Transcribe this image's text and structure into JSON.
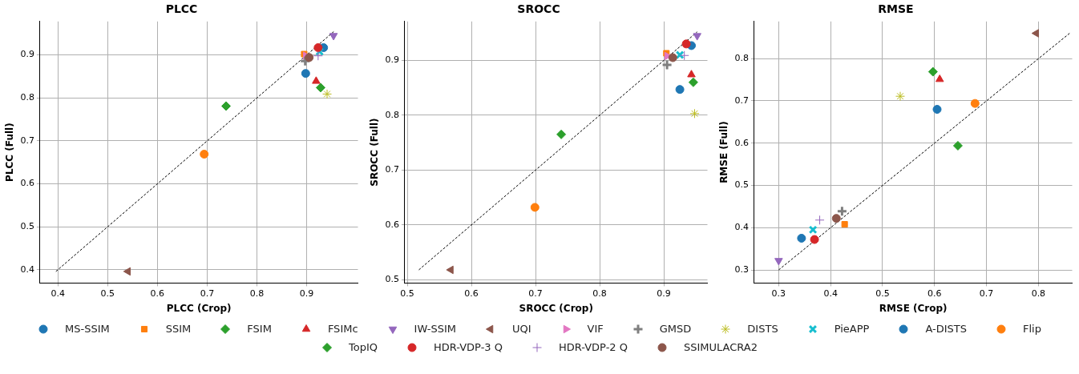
{
  "chart_data": [
    {
      "type": "scatter",
      "title": "PLCC",
      "xlabel": "PLCC (Crop)",
      "ylabel": "PLCC (Full)",
      "xlim": [
        0.364,
        1.003
      ],
      "ylim": [
        0.369,
        0.978
      ],
      "xticks": [
        0.4,
        0.5,
        0.6,
        0.7,
        0.8,
        0.9
      ],
      "yticks": [
        0.4,
        0.5,
        0.6,
        0.7,
        0.8,
        0.9
      ],
      "grid": true,
      "legend": "bottom",
      "series": [
        {
          "name": "MS-SSIM",
          "color": "#1f77b4",
          "marker": "circle",
          "x": [
            0.934
          ],
          "values": [
            0.917
          ]
        },
        {
          "name": "SSIM",
          "color": "#ff7f0e",
          "marker": "square",
          "x": [
            0.895
          ],
          "values": [
            0.902
          ]
        },
        {
          "name": "FSIM",
          "color": "#2ca02c",
          "marker": "diamond",
          "x": [
            0.928
          ],
          "values": [
            0.824
          ]
        },
        {
          "name": "FSIMc",
          "color": "#d62728",
          "marker": "triangle",
          "x": [
            0.919
          ],
          "values": [
            0.839
          ]
        },
        {
          "name": "IW-SSIM",
          "color": "#9467bd",
          "marker": "triangle_down",
          "x": [
            0.954
          ],
          "values": [
            0.945
          ]
        },
        {
          "name": "UQI",
          "color": "#8c564b",
          "marker": "triangle_left",
          "x": [
            0.541
          ],
          "values": [
            0.396
          ]
        },
        {
          "name": "VIF",
          "color": "#e377c2",
          "marker": "triangle_right",
          "x": [
            0.898
          ],
          "values": [
            0.898
          ]
        },
        {
          "name": "GMSD",
          "color": "#7f7f7f",
          "marker": "plus",
          "x": [
            0.897
          ],
          "values": [
            0.886
          ]
        },
        {
          "name": "DISTS",
          "color": "#bcbd22",
          "x": [
            0.941
          ],
          "values": [
            0.809
          ]
        },
        {
          "name": "PieAPP",
          "color": "#17becf",
          "marker": "x",
          "x": [
            0.926
          ],
          "values": [
            0.908
          ]
        },
        {
          "name": "A-DISTS",
          "color": "#1f77b4",
          "marker": "circle",
          "x": [
            0.898
          ],
          "values": [
            0.857
          ]
        },
        {
          "name": "Flip",
          "color": "#ff7f0e",
          "marker": "circle",
          "x": [
            0.694
          ],
          "values": [
            0.669
          ]
        },
        {
          "name": "TopIQ",
          "color": "#2ca02c",
          "marker": "diamond",
          "x": [
            0.738
          ],
          "values": [
            0.781
          ]
        },
        {
          "name": "HDR-VDP-3 Q",
          "color": "#d62728",
          "marker": "circle",
          "x": [
            0.923
          ],
          "values": [
            0.917
          ]
        },
        {
          "name": "HDR-VDP-2 Q",
          "color": "#9467bd",
          "marker": "cross",
          "x": [
            0.923
          ],
          "values": [
            0.898
          ]
        },
        {
          "name": "SSIMULACRA2",
          "color": "#8c564b",
          "marker": "circle",
          "x": [
            0.905
          ],
          "values": [
            0.894
          ]
        },
        {
          "type": "line",
          "color": "#000000",
          "marker": "none",
          "line_style": "dashed",
          "x": [
            0.396,
            0.955
          ],
          "values": [
            0.396,
            0.955
          ]
        }
      ]
    },
    {
      "type": "scatter",
      "title": "SROCC",
      "xlabel": "SROCC (Crop)",
      "ylabel": "SROCC (Full)",
      "xlim": [
        0.496,
        0.968
      ],
      "ylim": [
        0.494,
        0.971
      ],
      "xticks": [
        0.5,
        0.6,
        0.7,
        0.8,
        0.9
      ],
      "yticks": [
        0.5,
        0.6,
        0.7,
        0.8,
        0.9
      ],
      "grid": true,
      "series": [
        {
          "color": "#1f77b4",
          "marker": "circle",
          "x": [
            0.943
          ],
          "values": [
            0.927
          ]
        },
        {
          "color": "#ff7f0e",
          "marker": "square",
          "x": [
            0.904
          ],
          "values": [
            0.913
          ]
        },
        {
          "color": "#2ca02c",
          "marker": "diamond",
          "x": [
            0.946
          ],
          "values": [
            0.86
          ]
        },
        {
          "color": "#d62728",
          "marker": "triangle",
          "x": [
            0.943
          ],
          "values": [
            0.874
          ]
        },
        {
          "color": "#9467bd",
          "marker": "triangle_down",
          "x": [
            0.952
          ],
          "values": [
            0.945
          ]
        },
        {
          "color": "#8c564b",
          "marker": "triangle_left",
          "x": [
            0.568
          ],
          "values": [
            0.518
          ]
        },
        {
          "color": "#e377c2",
          "marker": "triangle_right",
          "x": [
            0.905
          ],
          "values": [
            0.908
          ]
        },
        {
          "color": "#7f7f7f",
          "marker": "plus",
          "x": [
            0.905
          ],
          "values": [
            0.892
          ]
        },
        {
          "color": "#bcbd22",
          "x": [
            0.948
          ],
          "values": [
            0.803
          ]
        },
        {
          "color": "#17becf",
          "marker": "x",
          "x": [
            0.925
          ],
          "values": [
            0.91
          ]
        },
        {
          "color": "#1f77b4",
          "marker": "circle",
          "x": [
            0.925
          ],
          "values": [
            0.847
          ]
        },
        {
          "color": "#ff7f0e",
          "marker": "circle",
          "x": [
            0.699
          ],
          "values": [
            0.632
          ]
        },
        {
          "color": "#2ca02c",
          "marker": "diamond",
          "x": [
            0.74
          ],
          "values": [
            0.765
          ]
        },
        {
          "color": "#d62728",
          "marker": "circle",
          "x": [
            0.935
          ],
          "values": [
            0.93
          ]
        },
        {
          "color": "#9467bd",
          "marker": "cross",
          "x": [
            0.932
          ],
          "values": [
            0.909
          ]
        },
        {
          "color": "#8c564b",
          "marker": "circle",
          "x": [
            0.914
          ],
          "values": [
            0.905
          ]
        },
        {
          "type": "line",
          "color": "#000000",
          "marker": "none",
          "line_style": "dashed",
          "x": [
            0.518,
            0.952
          ],
          "values": [
            0.518,
            0.952
          ]
        }
      ]
    },
    {
      "type": "scatter",
      "title": "RMSE",
      "xlabel": "RMSE (Crop)",
      "ylabel": "RMSE (Full)",
      "xlim": [
        0.253,
        0.865
      ],
      "ylim": [
        0.269,
        0.888
      ],
      "xticks": [
        0.3,
        0.4,
        0.5,
        0.6,
        0.7,
        0.8
      ],
      "yticks": [
        0.3,
        0.4,
        0.5,
        0.6,
        0.7,
        0.8
      ],
      "grid": true,
      "series": [
        {
          "color": "#1f77b4",
          "marker": "circle",
          "x": [
            0.344
          ],
          "values": [
            0.375
          ]
        },
        {
          "color": "#ff7f0e",
          "marker": "square",
          "x": [
            0.427
          ],
          "values": [
            0.408
          ]
        },
        {
          "color": "#2ca02c",
          "marker": "diamond",
          "x": [
            0.597
          ],
          "values": [
            0.769
          ]
        },
        {
          "color": "#d62728",
          "marker": "triangle",
          "x": [
            0.61
          ],
          "values": [
            0.751
          ]
        },
        {
          "color": "#9467bd",
          "marker": "triangle_down",
          "x": [
            0.3
          ],
          "values": [
            0.322
          ]
        },
        {
          "color": "#8c564b",
          "marker": "triangle_left",
          "x": [
            0.796
          ],
          "values": [
            0.86
          ]
        },
        {
          "color": "#e377c2",
          "marker": "triangle_right",
          "x": [
            null
          ],
          "values": [
            null
          ]
        },
        {
          "color": "#7f7f7f",
          "marker": "plus",
          "x": [
            0.422
          ],
          "values": [
            0.439
          ]
        },
        {
          "color": "#bcbd22",
          "x": [
            0.534
          ],
          "values": [
            0.711
          ]
        },
        {
          "color": "#17becf",
          "marker": "x",
          "x": [
            0.366
          ],
          "values": [
            0.395
          ]
        },
        {
          "color": "#1f77b4",
          "marker": "circle",
          "x": [
            0.605
          ],
          "values": [
            0.68
          ]
        },
        {
          "color": "#ff7f0e",
          "marker": "circle",
          "x": [
            0.678
          ],
          "values": [
            0.694
          ]
        },
        {
          "color": "#2ca02c",
          "marker": "diamond",
          "x": [
            0.645
          ],
          "values": [
            0.594
          ]
        },
        {
          "color": "#d62728",
          "marker": "circle",
          "x": [
            0.369
          ],
          "values": [
            0.372
          ]
        },
        {
          "color": "#9467bd",
          "marker": "cross",
          "x": [
            0.379
          ],
          "values": [
            0.418
          ]
        },
        {
          "color": "#8c564b",
          "marker": "circle",
          "x": [
            0.411
          ],
          "values": [
            0.422
          ]
        },
        {
          "type": "line",
          "color": "#000000",
          "marker": "none",
          "line_style": "dashed",
          "x": [
            0.3,
            0.86
          ],
          "values": [
            0.3,
            0.86
          ]
        }
      ]
    }
  ]
}
